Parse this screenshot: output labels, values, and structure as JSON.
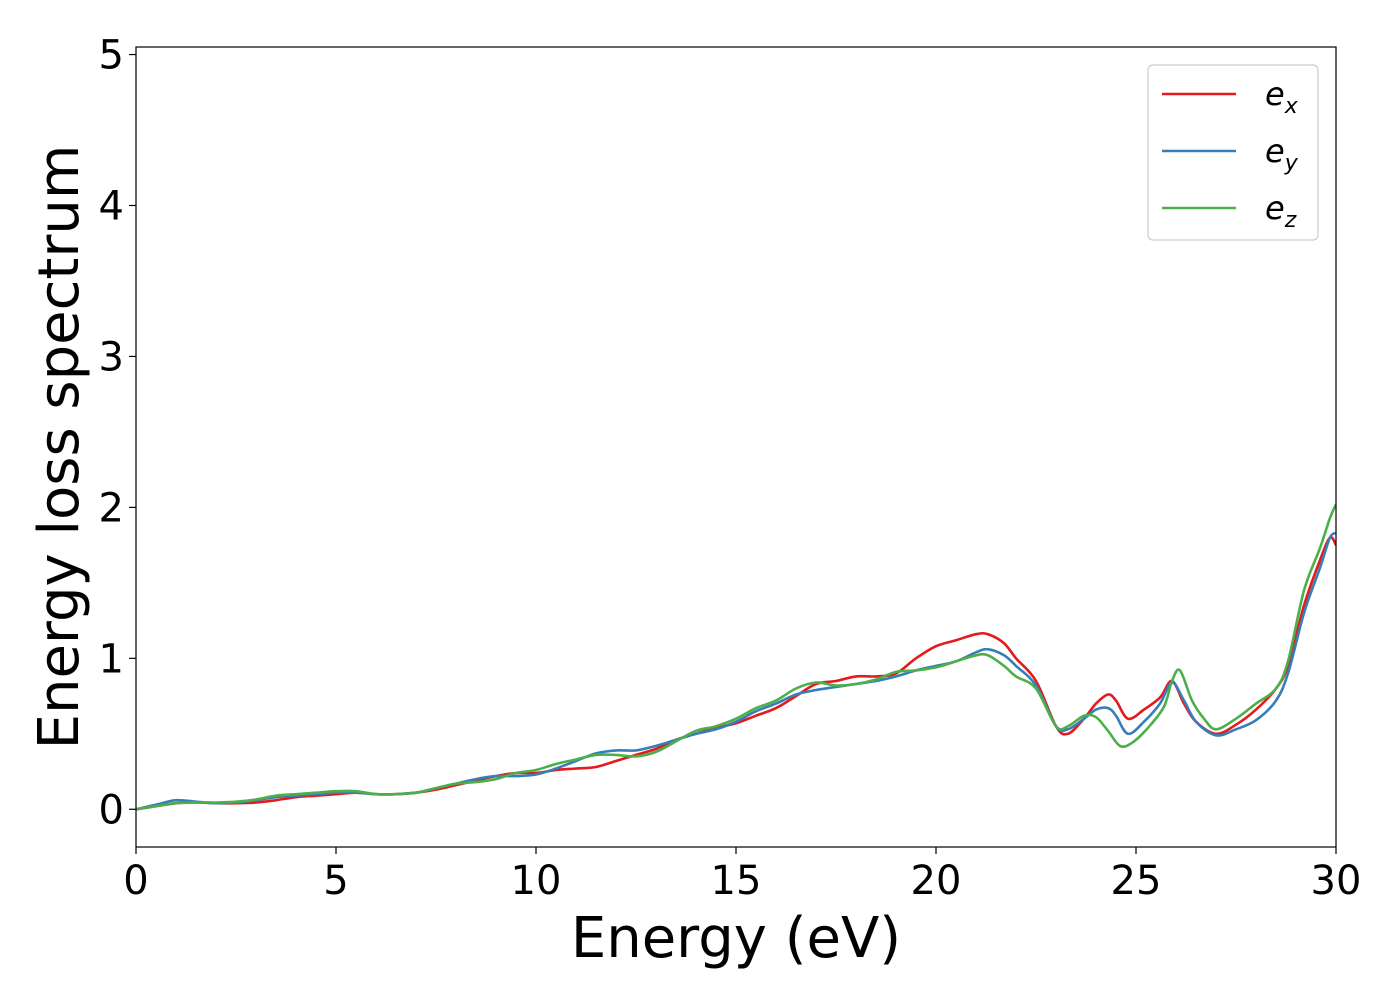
{
  "chart_data": {
    "type": "line",
    "title": "",
    "xlabel": "Energy (eV)",
    "ylabel": "Energy loss spectrum",
    "xlim": [
      0,
      30
    ],
    "ylim": [
      -0.25,
      5.05
    ],
    "xticks": [
      0,
      5,
      10,
      15,
      20,
      25,
      30
    ],
    "yticks": [
      0,
      1,
      2,
      3,
      4,
      5
    ],
    "grid": false,
    "legend_position": "top-right",
    "series": [
      {
        "name": "e",
        "subscript": "x",
        "color": "#e41a1c",
        "points": [
          [
            0,
            0
          ],
          [
            0.5,
            0.02
          ],
          [
            1,
            0.04
          ],
          [
            1.5,
            0.045
          ],
          [
            2,
            0.04
          ],
          [
            2.5,
            0.04
          ],
          [
            3,
            0.045
          ],
          [
            3.5,
            0.06
          ],
          [
            4,
            0.08
          ],
          [
            4.5,
            0.09
          ],
          [
            5,
            0.1
          ],
          [
            5.5,
            0.11
          ],
          [
            6,
            0.1
          ],
          [
            6.5,
            0.1
          ],
          [
            7,
            0.11
          ],
          [
            7.5,
            0.13
          ],
          [
            8,
            0.16
          ],
          [
            8.5,
            0.19
          ],
          [
            9,
            0.22
          ],
          [
            9.5,
            0.24
          ],
          [
            10,
            0.24
          ],
          [
            10.5,
            0.26
          ],
          [
            11,
            0.27
          ],
          [
            11.5,
            0.28
          ],
          [
            12,
            0.32
          ],
          [
            12.5,
            0.36
          ],
          [
            13,
            0.4
          ],
          [
            13.5,
            0.46
          ],
          [
            14,
            0.5
          ],
          [
            14.5,
            0.54
          ],
          [
            15,
            0.57
          ],
          [
            15.5,
            0.62
          ],
          [
            16,
            0.67
          ],
          [
            16.5,
            0.75
          ],
          [
            17,
            0.83
          ],
          [
            17.5,
            0.85
          ],
          [
            18,
            0.88
          ],
          [
            18.5,
            0.88
          ],
          [
            19,
            0.9
          ],
          [
            19.5,
            1.0
          ],
          [
            20,
            1.08
          ],
          [
            20.5,
            1.12
          ],
          [
            21,
            1.16
          ],
          [
            21.3,
            1.16
          ],
          [
            21.7,
            1.1
          ],
          [
            22,
            1.0
          ],
          [
            22.5,
            0.85
          ],
          [
            23,
            0.55
          ],
          [
            23.3,
            0.5
          ],
          [
            23.7,
            0.6
          ],
          [
            24,
            0.7
          ],
          [
            24.3,
            0.76
          ],
          [
            24.5,
            0.72
          ],
          [
            24.8,
            0.6
          ],
          [
            25.2,
            0.66
          ],
          [
            25.6,
            0.74
          ],
          [
            25.9,
            0.85
          ],
          [
            26.2,
            0.7
          ],
          [
            26.5,
            0.58
          ],
          [
            27,
            0.5
          ],
          [
            27.5,
            0.56
          ],
          [
            28,
            0.66
          ],
          [
            28.5,
            0.8
          ],
          [
            28.8,
            0.95
          ],
          [
            29.2,
            1.35
          ],
          [
            29.6,
            1.65
          ],
          [
            29.85,
            1.8
          ],
          [
            30,
            1.75
          ]
        ]
      },
      {
        "name": "e",
        "subscript": "y",
        "color": "#377eb8",
        "points": [
          [
            0,
            0
          ],
          [
            0.5,
            0.03
          ],
          [
            1,
            0.06
          ],
          [
            1.5,
            0.05
          ],
          [
            2,
            0.04
          ],
          [
            2.5,
            0.045
          ],
          [
            3,
            0.06
          ],
          [
            3.5,
            0.08
          ],
          [
            4,
            0.09
          ],
          [
            4.5,
            0.1
          ],
          [
            5,
            0.11
          ],
          [
            5.5,
            0.11
          ],
          [
            6,
            0.1
          ],
          [
            6.5,
            0.1
          ],
          [
            7,
            0.11
          ],
          [
            7.5,
            0.14
          ],
          [
            8,
            0.17
          ],
          [
            8.5,
            0.2
          ],
          [
            9,
            0.22
          ],
          [
            9.5,
            0.22
          ],
          [
            10,
            0.23
          ],
          [
            10.5,
            0.27
          ],
          [
            11,
            0.32
          ],
          [
            11.5,
            0.37
          ],
          [
            12,
            0.39
          ],
          [
            12.5,
            0.39
          ],
          [
            13,
            0.42
          ],
          [
            13.5,
            0.46
          ],
          [
            14,
            0.5
          ],
          [
            14.5,
            0.53
          ],
          [
            15,
            0.58
          ],
          [
            15.5,
            0.65
          ],
          [
            16,
            0.7
          ],
          [
            16.5,
            0.76
          ],
          [
            17,
            0.79
          ],
          [
            17.5,
            0.81
          ],
          [
            18,
            0.83
          ],
          [
            18.5,
            0.85
          ],
          [
            19,
            0.88
          ],
          [
            19.5,
            0.92
          ],
          [
            20,
            0.95
          ],
          [
            20.5,
            0.98
          ],
          [
            21,
            1.04
          ],
          [
            21.3,
            1.06
          ],
          [
            21.7,
            1.02
          ],
          [
            22,
            0.95
          ],
          [
            22.5,
            0.82
          ],
          [
            23,
            0.55
          ],
          [
            23.3,
            0.53
          ],
          [
            23.7,
            0.6
          ],
          [
            24,
            0.66
          ],
          [
            24.3,
            0.67
          ],
          [
            24.5,
            0.62
          ],
          [
            24.8,
            0.5
          ],
          [
            25.2,
            0.58
          ],
          [
            25.6,
            0.7
          ],
          [
            25.9,
            0.84
          ],
          [
            26.2,
            0.72
          ],
          [
            26.5,
            0.58
          ],
          [
            27,
            0.49
          ],
          [
            27.5,
            0.53
          ],
          [
            28,
            0.59
          ],
          [
            28.5,
            0.72
          ],
          [
            28.8,
            0.9
          ],
          [
            29.2,
            1.3
          ],
          [
            29.6,
            1.6
          ],
          [
            29.85,
            1.8
          ],
          [
            30,
            1.83
          ]
        ]
      },
      {
        "name": "e",
        "subscript": "z",
        "color": "#4daf4a",
        "points": [
          [
            0,
            0
          ],
          [
            0.5,
            0.02
          ],
          [
            1,
            0.04
          ],
          [
            1.5,
            0.045
          ],
          [
            2,
            0.045
          ],
          [
            2.5,
            0.05
          ],
          [
            3,
            0.065
          ],
          [
            3.5,
            0.09
          ],
          [
            4,
            0.1
          ],
          [
            4.5,
            0.11
          ],
          [
            5,
            0.12
          ],
          [
            5.5,
            0.12
          ],
          [
            6,
            0.1
          ],
          [
            6.5,
            0.1
          ],
          [
            7,
            0.11
          ],
          [
            7.5,
            0.14
          ],
          [
            8,
            0.17
          ],
          [
            8.5,
            0.18
          ],
          [
            9,
            0.2
          ],
          [
            9.5,
            0.24
          ],
          [
            10,
            0.26
          ],
          [
            10.5,
            0.3
          ],
          [
            11,
            0.33
          ],
          [
            11.5,
            0.36
          ],
          [
            12,
            0.36
          ],
          [
            12.5,
            0.35
          ],
          [
            13,
            0.38
          ],
          [
            13.5,
            0.45
          ],
          [
            14,
            0.52
          ],
          [
            14.5,
            0.55
          ],
          [
            15,
            0.6
          ],
          [
            15.5,
            0.67
          ],
          [
            16,
            0.72
          ],
          [
            16.5,
            0.8
          ],
          [
            17,
            0.84
          ],
          [
            17.5,
            0.82
          ],
          [
            18,
            0.83
          ],
          [
            18.5,
            0.86
          ],
          [
            19,
            0.91
          ],
          [
            19.5,
            0.92
          ],
          [
            20,
            0.94
          ],
          [
            20.5,
            0.98
          ],
          [
            21,
            1.02
          ],
          [
            21.3,
            1.02
          ],
          [
            21.7,
            0.95
          ],
          [
            22,
            0.88
          ],
          [
            22.5,
            0.8
          ],
          [
            23,
            0.55
          ],
          [
            23.3,
            0.55
          ],
          [
            23.7,
            0.62
          ],
          [
            24,
            0.61
          ],
          [
            24.3,
            0.52
          ],
          [
            24.6,
            0.42
          ],
          [
            24.9,
            0.44
          ],
          [
            25.3,
            0.54
          ],
          [
            25.7,
            0.68
          ],
          [
            25.9,
            0.85
          ],
          [
            26.1,
            0.92
          ],
          [
            26.4,
            0.72
          ],
          [
            26.7,
            0.6
          ],
          [
            27,
            0.53
          ],
          [
            27.5,
            0.6
          ],
          [
            28,
            0.7
          ],
          [
            28.5,
            0.8
          ],
          [
            28.8,
            0.98
          ],
          [
            29.2,
            1.45
          ],
          [
            29.6,
            1.73
          ],
          [
            29.85,
            1.93
          ],
          [
            30,
            2.02
          ]
        ]
      }
    ]
  }
}
